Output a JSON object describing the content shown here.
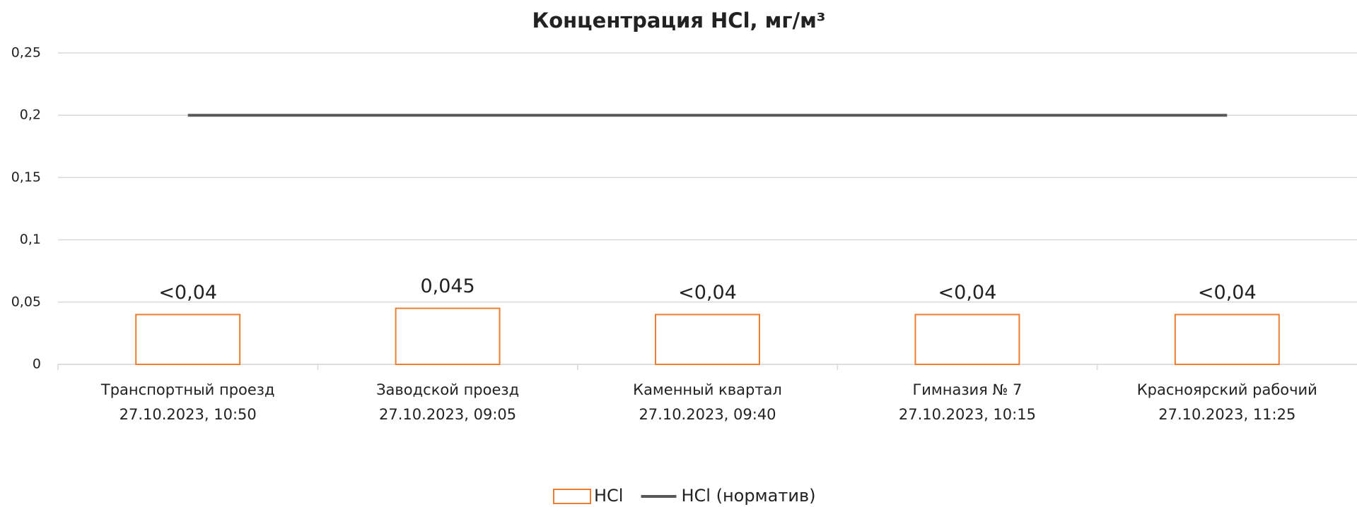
{
  "chart_data": {
    "type": "bar",
    "title": "Концентрация HCl, мг/м³",
    "categories": [
      [
        "Транспортный проезд",
        "27.10.2023, 10:50"
      ],
      [
        "Заводской проезд",
        "27.10.2023, 09:05"
      ],
      [
        "Каменный квартал",
        "27.10.2023, 09:40"
      ],
      [
        "Гимназия № 7",
        "27.10.2023, 10:15"
      ],
      [
        "Красноярский рабочий",
        "27.10.2023, 11:25"
      ]
    ],
    "series": [
      {
        "name": "HCl",
        "type": "bar",
        "color": "#ed7d31",
        "values": [
          0.04,
          0.045,
          0.04,
          0.04,
          0.04
        ],
        "value_labels": [
          "<0,04",
          "0,045",
          "<0,04",
          "<0,04",
          "<0,04"
        ]
      },
      {
        "name": "HCl (норматив)",
        "type": "line",
        "color": "#595959",
        "values": [
          0.2,
          0.2,
          0.2,
          0.2,
          0.2
        ]
      }
    ],
    "ylim": [
      0,
      0.25
    ],
    "yticks": [
      0,
      {
        "value": 0.05,
        "label": "0,05"
      },
      {
        "value": 0.1,
        "label": "0,1"
      },
      {
        "value": 0.15,
        "label": "0,15"
      },
      {
        "value": 0.2,
        "label": "0,2"
      },
      {
        "value": 0.25,
        "label": "0,25"
      }
    ],
    "grid": true,
    "legend": "bottom"
  }
}
